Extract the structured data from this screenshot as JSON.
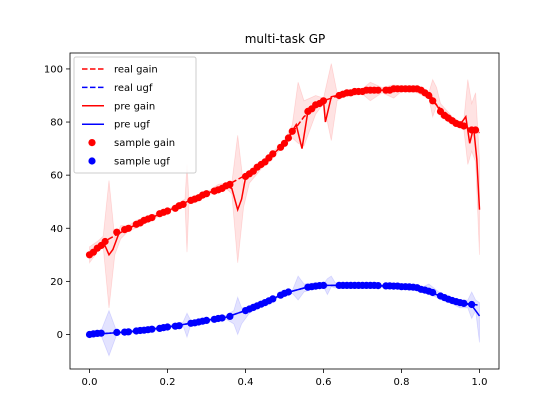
{
  "chart_data": {
    "type": "line",
    "title": "multi-task GP",
    "xlabel": "",
    "ylabel": "",
    "xlim": [
      -0.05,
      1.05
    ],
    "ylim": [
      -13,
      106
    ],
    "xticks": [
      0.0,
      0.2,
      0.4,
      0.6,
      0.8,
      1.0
    ],
    "xtick_labels": [
      "0.0",
      "0.2",
      "0.4",
      "0.6",
      "0.8",
      "1.0"
    ],
    "yticks": [
      0,
      20,
      40,
      60,
      80,
      100
    ],
    "ytick_labels": [
      "0",
      "20",
      "40",
      "60",
      "80",
      "100"
    ],
    "grid": false,
    "legend_position": "top-left",
    "colors": {
      "gain": "#ff0000",
      "ugf": "#0000ff",
      "gain_band": "#ffc0c0",
      "ugf_band": "#c0c0ff"
    },
    "legend": [
      {
        "label": "real gain",
        "kind": "dashed",
        "color": "#ff0000"
      },
      {
        "label": "real ugf",
        "kind": "dashed",
        "color": "#0000ff"
      },
      {
        "label": "pre gain",
        "kind": "solid",
        "color": "#ff0000"
      },
      {
        "label": "pre ugf",
        "kind": "solid",
        "color": "#0000ff"
      },
      {
        "label": "sample gain",
        "kind": "marker",
        "color": "#ff0000"
      },
      {
        "label": "sample ugf",
        "kind": "marker",
        "color": "#0000ff"
      }
    ],
    "series": [
      {
        "name": "real gain",
        "style": "dashed",
        "x": [
          0.0,
          0.05,
          0.1,
          0.15,
          0.2,
          0.25,
          0.3,
          0.35,
          0.4,
          0.45,
          0.5,
          0.55,
          0.6,
          0.65,
          0.7,
          0.75,
          0.8,
          0.85,
          0.9,
          0.95,
          1.0
        ],
        "y": [
          30,
          36,
          40,
          43.5,
          46.5,
          50,
          53,
          56,
          60,
          65,
          72,
          82,
          88,
          90.5,
          91.5,
          92,
          92.5,
          92,
          85,
          79,
          76
        ]
      },
      {
        "name": "real ugf",
        "style": "dashed",
        "x": [
          0.0,
          0.05,
          0.1,
          0.15,
          0.2,
          0.25,
          0.3,
          0.35,
          0.4,
          0.45,
          0.5,
          0.55,
          0.6,
          0.65,
          0.7,
          0.75,
          0.8,
          0.85,
          0.9,
          0.95,
          1.0
        ],
        "y": [
          0,
          0.5,
          1,
          1.8,
          2.8,
          4,
          5.3,
          6.5,
          9,
          12,
          15.5,
          17.5,
          18.5,
          18.5,
          18.5,
          18.3,
          18,
          17,
          14.5,
          12,
          11
        ]
      },
      {
        "name": "pre gain",
        "style": "solid",
        "x": [
          0.0,
          0.02,
          0.035,
          0.05,
          0.06,
          0.075,
          0.1,
          0.15,
          0.2,
          0.25,
          0.3,
          0.35,
          0.365,
          0.38,
          0.39,
          0.4,
          0.45,
          0.5,
          0.53,
          0.545,
          0.56,
          0.58,
          0.6,
          0.605,
          0.62,
          0.65,
          0.7,
          0.75,
          0.8,
          0.85,
          0.875,
          0.9,
          0.95,
          0.965,
          0.975,
          0.985,
          0.993,
          1.0
        ],
        "y": [
          30,
          33,
          35,
          30,
          32,
          38,
          40,
          43.5,
          46.5,
          50,
          53,
          56,
          55,
          47,
          51,
          59,
          65,
          72,
          79,
          70,
          84,
          87,
          88,
          80,
          89.5,
          90.5,
          91.5,
          92,
          92.5,
          92,
          90,
          84,
          79,
          82,
          72,
          78,
          66,
          47
        ]
      },
      {
        "name": "pre ugf",
        "style": "solid",
        "x": [
          0.0,
          0.05,
          0.1,
          0.15,
          0.2,
          0.25,
          0.3,
          0.35,
          0.4,
          0.45,
          0.5,
          0.55,
          0.6,
          0.65,
          0.7,
          0.75,
          0.8,
          0.85,
          0.9,
          0.95,
          0.98,
          0.99,
          1.0
        ],
        "y": [
          0,
          0.5,
          1,
          1.8,
          2.8,
          4,
          5.3,
          6.5,
          9,
          12,
          15.5,
          17.5,
          18.5,
          18.5,
          18.5,
          18.3,
          18,
          17,
          14.5,
          12,
          11,
          9,
          7
        ]
      }
    ],
    "bands": [
      {
        "name": "gain uncertainty",
        "x": [
          0.0,
          0.02,
          0.035,
          0.05,
          0.065,
          0.08,
          0.1,
          0.12,
          0.15,
          0.2,
          0.245,
          0.25,
          0.255,
          0.3,
          0.33,
          0.35,
          0.365,
          0.38,
          0.395,
          0.41,
          0.45,
          0.5,
          0.52,
          0.535,
          0.55,
          0.58,
          0.6,
          0.62,
          0.635,
          0.65,
          0.7,
          0.72,
          0.75,
          0.78,
          0.8,
          0.84,
          0.87,
          0.88,
          0.89,
          0.9,
          0.93,
          0.95,
          0.96,
          0.97,
          0.98,
          0.99,
          1.0
        ],
        "lower": [
          27,
          31,
          33,
          10,
          30,
          36,
          39,
          40,
          42.5,
          46,
          49,
          31,
          49,
          52.5,
          53.5,
          55,
          53,
          27,
          48,
          57,
          64,
          71,
          74,
          72,
          71,
          83,
          87,
          73,
          88,
          89.5,
          90.5,
          88,
          91,
          89,
          91.5,
          91,
          89,
          82,
          86,
          82,
          79,
          78,
          77,
          64,
          69,
          65,
          30
        ],
        "upper": [
          33,
          35,
          37,
          58,
          36,
          41,
          41,
          43,
          44.5,
          47,
          51,
          64,
          51,
          53.5,
          56.5,
          57,
          57,
          75,
          56,
          61,
          66,
          73,
          79,
          95,
          88,
          90,
          89,
          102,
          91,
          91.5,
          92.5,
          95,
          93,
          94,
          93.5,
          93,
          91,
          96,
          93,
          87,
          82,
          80,
          81,
          96,
          87,
          91,
          66
        ]
      },
      {
        "name": "ugf uncertainty",
        "x": [
          0.0,
          0.03,
          0.05,
          0.07,
          0.1,
          0.15,
          0.2,
          0.24,
          0.25,
          0.26,
          0.3,
          0.35,
          0.37,
          0.38,
          0.39,
          0.41,
          0.45,
          0.5,
          0.52,
          0.535,
          0.55,
          0.58,
          0.6,
          0.61,
          0.62,
          0.63,
          0.65,
          0.7,
          0.75,
          0.8,
          0.85,
          0.87,
          0.9,
          0.93,
          0.95,
          0.97,
          0.98,
          0.99,
          1.0
        ],
        "lower": [
          -0.5,
          -0.5,
          -8,
          0,
          0.5,
          1.3,
          2.3,
          3.3,
          -1,
          3.8,
          4.8,
          5.8,
          4,
          0,
          4,
          8,
          11.5,
          15,
          15.5,
          13,
          16,
          17.5,
          18,
          15,
          18,
          17.5,
          18,
          18,
          17.8,
          17.5,
          16.5,
          15,
          13.5,
          11.5,
          10,
          10,
          6,
          9,
          -3
        ],
        "upper": [
          0.5,
          1.5,
          9,
          1,
          1.5,
          2.3,
          3.3,
          4.7,
          8,
          5.2,
          5.8,
          7.2,
          9,
          14,
          10,
          10,
          12.5,
          16,
          16.5,
          22,
          19,
          19.5,
          19,
          21,
          22,
          19.5,
          19,
          19,
          18.8,
          18.5,
          17.5,
          19,
          15.5,
          13.5,
          13,
          13,
          16,
          13,
          12
        ]
      }
    ],
    "samples": [
      {
        "name": "sample gain",
        "x": [
          0.0,
          0.01,
          0.02,
          0.03,
          0.04,
          0.07,
          0.09,
          0.1,
          0.12,
          0.13,
          0.14,
          0.15,
          0.16,
          0.18,
          0.19,
          0.2,
          0.22,
          0.23,
          0.24,
          0.26,
          0.27,
          0.28,
          0.29,
          0.3,
          0.32,
          0.33,
          0.34,
          0.35,
          0.36,
          0.4,
          0.41,
          0.42,
          0.43,
          0.44,
          0.45,
          0.46,
          0.47,
          0.49,
          0.5,
          0.51,
          0.52,
          0.56,
          0.57,
          0.58,
          0.59,
          0.6,
          0.64,
          0.65,
          0.66,
          0.67,
          0.68,
          0.69,
          0.7,
          0.71,
          0.72,
          0.73,
          0.74,
          0.76,
          0.77,
          0.78,
          0.79,
          0.8,
          0.81,
          0.82,
          0.83,
          0.84,
          0.85,
          0.86,
          0.87,
          0.88,
          0.9,
          0.91,
          0.92,
          0.93,
          0.94,
          0.95,
          0.96,
          0.98,
          0.99
        ],
        "y": [
          30,
          31,
          32.5,
          33.5,
          35,
          38.5,
          39.5,
          40,
          41.5,
          42,
          43,
          43.5,
          44,
          45.5,
          46,
          46.5,
          47.5,
          48.5,
          49,
          50.5,
          51,
          51.5,
          52.5,
          53,
          54,
          54.5,
          55,
          56,
          56.5,
          59.5,
          60.5,
          61.5,
          63,
          64,
          65,
          66.5,
          68,
          70.5,
          72,
          74,
          76.5,
          84,
          85,
          86.5,
          87,
          88,
          90,
          90.5,
          91,
          91,
          91.5,
          91.5,
          91.5,
          92,
          92,
          92,
          92,
          92,
          92,
          92.5,
          92.5,
          92.5,
          92.5,
          92.5,
          92.5,
          92.5,
          92,
          91,
          90,
          88,
          84,
          82.5,
          81.5,
          80.5,
          79.5,
          79,
          78.5,
          77,
          77
        ]
      },
      {
        "name": "sample ugf",
        "x": [
          0.0,
          0.01,
          0.02,
          0.03,
          0.07,
          0.09,
          0.1,
          0.12,
          0.13,
          0.14,
          0.15,
          0.16,
          0.18,
          0.19,
          0.2,
          0.22,
          0.23,
          0.26,
          0.27,
          0.28,
          0.29,
          0.3,
          0.32,
          0.33,
          0.34,
          0.36,
          0.4,
          0.41,
          0.42,
          0.43,
          0.44,
          0.45,
          0.46,
          0.47,
          0.49,
          0.5,
          0.51,
          0.56,
          0.57,
          0.58,
          0.59,
          0.6,
          0.64,
          0.65,
          0.66,
          0.67,
          0.68,
          0.69,
          0.7,
          0.71,
          0.72,
          0.73,
          0.74,
          0.76,
          0.77,
          0.78,
          0.79,
          0.8,
          0.81,
          0.82,
          0.83,
          0.84,
          0.85,
          0.86,
          0.87,
          0.88,
          0.9,
          0.91,
          0.92,
          0.93,
          0.94,
          0.95,
          0.96,
          0.98
        ],
        "y": [
          0,
          0.2,
          0.4,
          0.5,
          0.8,
          0.9,
          1,
          1.3,
          1.5,
          1.6,
          1.8,
          2,
          2.3,
          2.6,
          2.8,
          3.1,
          3.3,
          4.2,
          4.4,
          4.7,
          5,
          5.3,
          5.7,
          6,
          6.2,
          6.8,
          9,
          9.6,
          10.2,
          10.8,
          11.4,
          12,
          12.7,
          13.4,
          14.8,
          15.5,
          16,
          17.8,
          18,
          18.2,
          18.4,
          18.5,
          18.5,
          18.5,
          18.5,
          18.5,
          18.5,
          18.5,
          18.5,
          18.5,
          18.5,
          18.5,
          18.4,
          18.3,
          18.3,
          18.2,
          18.2,
          18,
          18,
          17.9,
          17.8,
          17.6,
          17,
          16.7,
          16.3,
          15.8,
          14.5,
          13.9,
          13.3,
          12.8,
          12.4,
          12,
          11.7,
          11.3
        ]
      }
    ]
  }
}
